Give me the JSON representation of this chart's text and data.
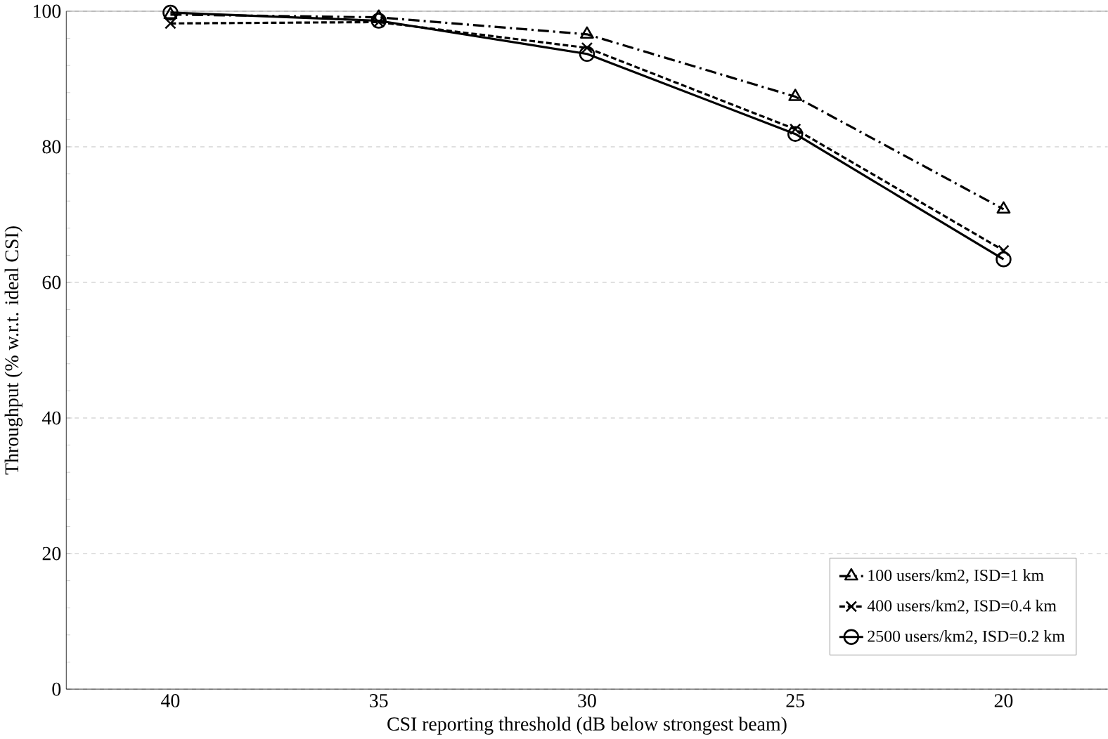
{
  "chart_data": {
    "type": "line",
    "xlabel": "CSI reporting threshold (dB below strongest beam)",
    "ylabel": "Throughput (% w.r.t. ideal CSI)",
    "categories": [
      "40",
      "35",
      "30",
      "25",
      "20"
    ],
    "series": [
      {
        "name": "100 users/km2, ISD=1 km",
        "color": "#000000",
        "marker": "triangle",
        "line_style": "dashdot",
        "values": [
          99.5,
          99.1,
          96.6,
          87.4,
          70.8
        ]
      },
      {
        "name": "400 users/km2, ISD=0.4 km",
        "color": "#000000",
        "marker": "cross",
        "line_style": "dashed",
        "values": [
          98.2,
          98.4,
          94.6,
          82.6,
          64.7
        ]
      },
      {
        "name": "2500 users/km2, ISD=0.2 km",
        "color": "#000000",
        "marker": "circle",
        "line_style": "solid",
        "values": [
          99.8,
          98.6,
          93.7,
          81.9,
          63.4
        ]
      }
    ],
    "ylim": [
      0,
      100
    ],
    "yticks": [
      0,
      20,
      40,
      60,
      80,
      100
    ],
    "grid": "y",
    "legend": "bottom right"
  }
}
